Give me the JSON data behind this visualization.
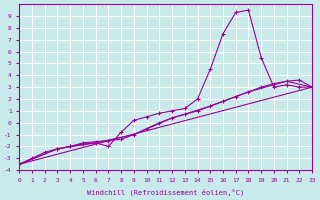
{
  "background_color": "#c8eaea",
  "grid_color": "#ffffff",
  "line_color": "#990099",
  "xlabel": "Windchill (Refroidissement éolien,°C)",
  "xlim": [
    0,
    23
  ],
  "ylim": [
    -4,
    10
  ],
  "xticks": [
    0,
    1,
    2,
    3,
    4,
    5,
    6,
    7,
    8,
    9,
    10,
    11,
    12,
    13,
    14,
    15,
    16,
    17,
    18,
    19,
    20,
    21,
    22,
    23
  ],
  "yticks": [
    -4,
    -3,
    -2,
    -1,
    0,
    1,
    2,
    3,
    4,
    5,
    6,
    7,
    8,
    9
  ],
  "xtick_labels": [
    "0",
    "1",
    "2",
    "3",
    "4",
    "5",
    "6",
    "7",
    "8",
    "9",
    "10",
    "11",
    "12",
    "13",
    "14",
    "15",
    "16",
    "17",
    "18",
    "19",
    "20",
    "21",
    "22",
    "23"
  ],
  "ytick_labels": [
    "-4",
    "-3",
    "-2",
    "-1",
    "0",
    "1",
    "2",
    "3",
    "4",
    "5",
    "6",
    "7",
    "8",
    "9"
  ],
  "curve1_x": [
    0,
    1,
    2,
    3,
    4,
    5,
    6,
    7,
    8,
    9,
    10,
    11,
    12,
    13,
    14,
    15,
    16,
    17,
    18,
    19,
    20,
    21,
    22,
    23
  ],
  "curve1_y": [
    -3.5,
    -3.0,
    -2.5,
    -2.2,
    -2.0,
    -1.8,
    -1.7,
    -2.0,
    -0.8,
    0.2,
    0.5,
    0.8,
    1.0,
    1.2,
    2.0,
    4.5,
    7.5,
    9.3,
    9.5,
    5.5,
    3.0,
    3.2,
    3.0,
    3.0
  ],
  "curve2_x": [
    0,
    3,
    4,
    5,
    6,
    7,
    8,
    9,
    10,
    11,
    12,
    13,
    14,
    15,
    16,
    17,
    18,
    19,
    20,
    21,
    22,
    23
  ],
  "curve2_y": [
    -3.5,
    -2.2,
    -2.0,
    -1.7,
    -1.6,
    -1.5,
    -1.4,
    -1.0,
    -0.5,
    0.0,
    0.4,
    0.7,
    1.0,
    1.4,
    1.8,
    2.2,
    2.6,
    3.0,
    3.3,
    3.5,
    3.6,
    3.0
  ],
  "curve3_x": [
    0,
    23
  ],
  "curve3_y": [
    -3.5,
    3.0
  ],
  "curve4_x": [
    0,
    3,
    6,
    9,
    12,
    15,
    18,
    21,
    23
  ],
  "curve4_y": [
    -3.5,
    -2.2,
    -1.7,
    -1.0,
    0.4,
    1.4,
    2.6,
    3.5,
    3.0
  ]
}
